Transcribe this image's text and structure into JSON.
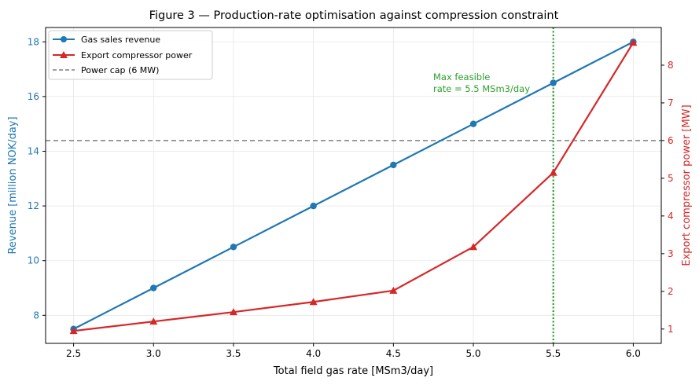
{
  "chart_data": {
    "type": "line",
    "title": "Figure 3 — Production-rate optimisation against compression constraint",
    "xlabel": "Total field gas rate [MSm3/day]",
    "ylabel_left": "Revenue [million NOK/day]",
    "ylabel_right": "Export compressor power [MW]",
    "xlim": [
      2.325,
      6.175
    ],
    "ylim_left": [
      6.975,
      18.525
    ],
    "ylim_right": [
      0.62,
      9.0
    ],
    "x_ticks": [
      "2.5",
      "3.0",
      "3.5",
      "4.0",
      "4.5",
      "5.0",
      "5.5",
      "6.0"
    ],
    "y_left_ticks": [
      "8",
      "10",
      "12",
      "14",
      "16",
      "18"
    ],
    "y_right_ticks": [
      "1",
      "2",
      "3",
      "4",
      "5",
      "6",
      "7",
      "8"
    ],
    "x": [
      2.5,
      3.0,
      3.5,
      4.0,
      4.5,
      5.0,
      5.5,
      6.0
    ],
    "series": [
      {
        "name": "Gas sales revenue",
        "axis": "left",
        "color": "#1f77b4",
        "marker": "circle",
        "values": [
          7.5,
          9.0,
          10.5,
          12.0,
          13.5,
          15.0,
          16.5,
          18.0
        ]
      },
      {
        "name": "Export compressor power",
        "axis": "right",
        "color": "#d62728",
        "marker": "triangle",
        "values": [
          0.95,
          1.2,
          1.45,
          1.72,
          2.02,
          3.18,
          5.15,
          8.6
        ]
      }
    ],
    "reference_lines": [
      {
        "name": "Power cap (6 MW)",
        "orientation": "horizontal",
        "axis": "right",
        "value": 6,
        "color": "#7f7f7f",
        "style": "dashed"
      },
      {
        "name": "",
        "orientation": "vertical",
        "value": 5.5,
        "color": "#2ca02c",
        "style": "dotted"
      }
    ],
    "annotation": {
      "lines": [
        "Max feasible",
        "rate = 5.5 MSm3/day"
      ],
      "color": "#2ca02c"
    },
    "legend": {
      "placement": "upper-left"
    },
    "grid": true
  }
}
